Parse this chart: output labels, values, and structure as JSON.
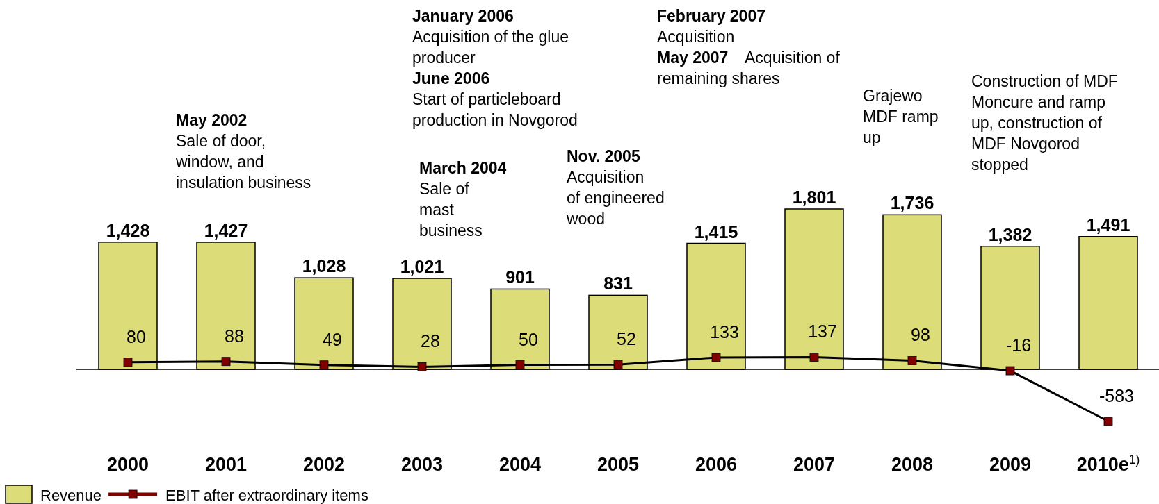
{
  "chart_data": {
    "type": "bar",
    "categories": [
      "2000",
      "2001",
      "2002",
      "2003",
      "2004",
      "2005",
      "2006",
      "2007",
      "2008",
      "2009",
      "2010e$^{1)}$"
    ],
    "series": [
      {
        "name": "Revenue",
        "color": "#dcdc78",
        "values": [
          1428,
          1427,
          1028,
          1021,
          901,
          831,
          1415,
          1801,
          1736,
          1382,
          1491
        ],
        "value_labels": [
          "1,428",
          "1,427",
          "1,028",
          "1,021",
          "901",
          "831",
          "1,415",
          "1,801",
          "1,736",
          "1,382",
          "1,491"
        ]
      },
      {
        "name": "EBIT after extraordinary items",
        "type": "line",
        "color": "#800000",
        "marker": "square",
        "values": [
          80,
          88,
          49,
          28,
          50,
          52,
          133,
          137,
          98,
          -16,
          -583
        ],
        "value_labels": [
          "80",
          "88",
          "49",
          "28",
          "50",
          "52",
          "133",
          "137",
          "98",
          "-16",
          "-583"
        ]
      }
    ],
    "legend": "bottom left",
    "annotations": [
      "May 2002",
      "Sale of door,\nwindow, and\ninsulation business",
      "January 2006",
      "Acquisition of the glue\nproducer",
      "June 2006",
      "Start of particleboard\nproduction in Novgorod",
      "March 2004",
      "Sale of\nmast\nbusiness",
      "Nov. 2005",
      "Acquisition\nof engineered\nwood",
      "February 2007",
      "Acquisition",
      "May 2007",
      "Acquisition of\nremaining shares",
      "Grajewo\nMDF ramp\nup",
      "Construction of MDF\nMoncure and ramp\nup, construction of\nMDF Novgorod\nstopped"
    ]
  }
}
